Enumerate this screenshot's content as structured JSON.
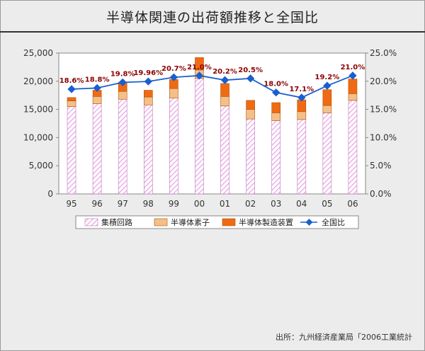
{
  "title": "半導体関連の出荷額推移と全国比",
  "source": "出所：九州経済産業局「2006工業統計",
  "colors": {
    "integrated": "#e6a0e0",
    "discrete": "#f4c08a",
    "equipment": "#f06a14",
    "line": "#1a5fd0",
    "label": "#8b0000"
  },
  "chart_data": {
    "type": "bar",
    "stacked": true,
    "categories": [
      "95",
      "96",
      "97",
      "98",
      "99",
      "00",
      "01",
      "02",
      "03",
      "04",
      "05",
      "06"
    ],
    "series": [
      {
        "name": "集積回路",
        "values": [
          15500,
          16000,
          16800,
          15800,
          17000,
          20500,
          15600,
          13300,
          13000,
          13200,
          14400,
          16600
        ]
      },
      {
        "name": "半導体素子",
        "values": [
          1000,
          1300,
          1400,
          1400,
          1700,
          1500,
          1700,
          1700,
          1400,
          1400,
          1300,
          1200
        ]
      },
      {
        "name": "半導体製造装置",
        "values": [
          600,
          1100,
          1600,
          1200,
          1600,
          2200,
          2300,
          1600,
          1800,
          2100,
          2800,
          2600
        ]
      }
    ],
    "line_series": {
      "name": "全国比",
      "values": [
        18.6,
        18.8,
        19.8,
        19.96,
        20.7,
        21.0,
        20.2,
        20.5,
        18.0,
        17.1,
        19.2,
        21.0
      ]
    },
    "line_labels": [
      "18.6%",
      "18.8%",
      "19.8%",
      "19.96%",
      "20.7%",
      "21.0%",
      "20.2%",
      "20.5%",
      "18.0%",
      "17.1%",
      "19.2%",
      "21.0%"
    ],
    "y_left": {
      "min": 0,
      "max": 25000,
      "ticks": [
        "0",
        "5,000",
        "10,000",
        "15,000",
        "20,000",
        "25,000"
      ]
    },
    "y_right": {
      "min": 0,
      "max": 25,
      "ticks": [
        "0.0%",
        "5.0%",
        "10.0%",
        "15.0%",
        "20.0%",
        "25.0%"
      ]
    },
    "legend": [
      "集積回路",
      "半導体素子",
      "半導体製造装置",
      "全国比"
    ],
    "legend_position": "bottom",
    "grid": false
  }
}
